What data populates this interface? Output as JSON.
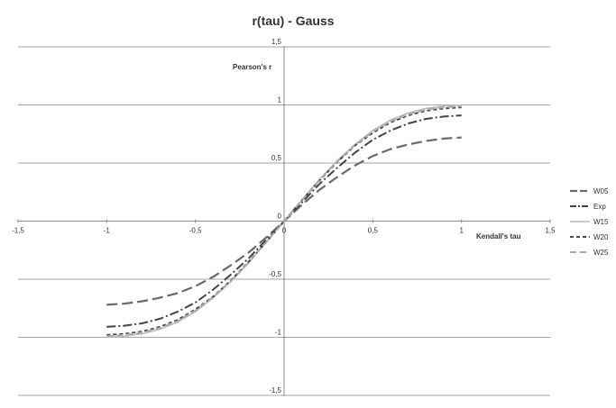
{
  "chart_data": {
    "type": "line",
    "title": "r(tau) - Gauss",
    "xlabel": "Kendall's tau",
    "ylabel": "Pearson's r",
    "xlim": [
      -1.5,
      1.5
    ],
    "ylim": [
      -1.5,
      1.5
    ],
    "x_ticks": [
      -1.5,
      -1,
      -0.5,
      0,
      0.5,
      1,
      1.5
    ],
    "x_tick_labels": [
      "-1,5",
      "-1",
      "-0,5",
      "0",
      "0,5",
      "1",
      "1,5"
    ],
    "y_ticks": [
      1.5,
      1,
      0.5,
      0,
      -0.5,
      -1,
      -1.5
    ],
    "y_tick_labels": [
      "1,5",
      "1",
      "0,5",
      "0",
      "-0,5",
      "-1",
      "-1,5"
    ],
    "grid": "horizontal",
    "legend_position": "right",
    "x": [
      -1,
      -0.9,
      -0.8,
      -0.7,
      -0.6,
      -0.5,
      -0.4,
      -0.3,
      -0.2,
      -0.1,
      0,
      0.1,
      0.2,
      0.3,
      0.4,
      0.5,
      0.6,
      0.7,
      0.8,
      0.9,
      1
    ],
    "series": [
      {
        "name": "W05",
        "style": "long-dash",
        "color": "#6a6a6a",
        "values": [
          -0.72,
          -0.71,
          -0.69,
          -0.66,
          -0.62,
          -0.56,
          -0.48,
          -0.38,
          -0.27,
          -0.14,
          0,
          0.14,
          0.27,
          0.38,
          0.48,
          0.56,
          0.62,
          0.66,
          0.69,
          0.71,
          0.72
        ]
      },
      {
        "name": "Exp",
        "style": "dash-dot",
        "color": "#444444",
        "values": [
          -0.91,
          -0.9,
          -0.88,
          -0.84,
          -0.78,
          -0.7,
          -0.59,
          -0.46,
          -0.32,
          -0.16,
          0,
          0.16,
          0.32,
          0.46,
          0.59,
          0.7,
          0.78,
          0.84,
          0.88,
          0.9,
          0.91
        ]
      },
      {
        "name": "W15",
        "style": "solid",
        "color": "#bbbbbb",
        "values": [
          -1.0,
          -0.99,
          -0.97,
          -0.93,
          -0.87,
          -0.78,
          -0.66,
          -0.52,
          -0.36,
          -0.18,
          0,
          0.18,
          0.36,
          0.52,
          0.66,
          0.78,
          0.87,
          0.93,
          0.97,
          0.99,
          1.0
        ]
      },
      {
        "name": "W20",
        "style": "short-dash",
        "color": "#4a4a4a",
        "values": [
          -0.98,
          -0.97,
          -0.95,
          -0.91,
          -0.85,
          -0.76,
          -0.65,
          -0.51,
          -0.35,
          -0.18,
          0,
          0.18,
          0.35,
          0.51,
          0.65,
          0.76,
          0.85,
          0.91,
          0.95,
          0.97,
          0.98
        ]
      },
      {
        "name": "W25",
        "style": "dash",
        "color": "#aaaaaa",
        "values": [
          -0.99,
          -0.98,
          -0.96,
          -0.92,
          -0.86,
          -0.77,
          -0.655,
          -0.515,
          -0.355,
          -0.18,
          0,
          0.18,
          0.355,
          0.515,
          0.655,
          0.77,
          0.86,
          0.92,
          0.96,
          0.98,
          0.99
        ]
      }
    ]
  }
}
